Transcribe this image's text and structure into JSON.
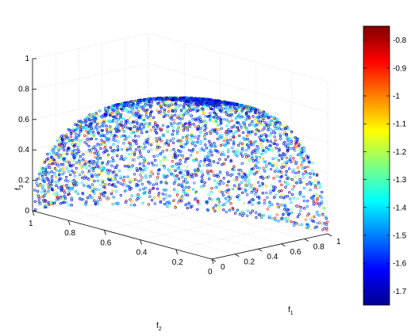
{
  "chart_data": {
    "type": "scatter",
    "projection": "3d",
    "title": "",
    "xlabel": "f",
    "xlabel_sub": "1",
    "ylabel": "f",
    "ylabel_sub": "2",
    "zlabel": "f",
    "zlabel_sub": "3",
    "xlim": [
      0,
      1
    ],
    "ylim": [
      0,
      1
    ],
    "zlim": [
      0,
      1
    ],
    "x_ticks": [
      "0",
      "0.2",
      "0.4",
      "0.6",
      "0.8",
      "1"
    ],
    "y_ticks": [
      "0",
      "0.2",
      "0.4",
      "0.6",
      "0.8",
      "1"
    ],
    "z_ticks": [
      "0",
      "0.2",
      "0.4",
      "0.6",
      "0.8",
      "1"
    ],
    "grid": true,
    "surface": "sphere octant f1^2 + f2^2 + f3^2 = 1",
    "marker": "open circle",
    "n_points_approx": 3000,
    "color_value_range": [
      -1.75,
      -0.75
    ],
    "colorbar": {
      "position": "right",
      "colormap": "jet",
      "range": [
        -1.75,
        -0.75
      ],
      "ticks": [
        "-0.8",
        "-0.9",
        "-1",
        "-1.1",
        "-1.2",
        "-1.3",
        "-1.4",
        "-1.5",
        "-1.6",
        "-1.7"
      ],
      "tick_values": [
        -0.8,
        -0.9,
        -1.0,
        -1.1,
        -1.2,
        -1.3,
        -1.4,
        -1.5,
        -1.6,
        -1.7
      ]
    }
  }
}
